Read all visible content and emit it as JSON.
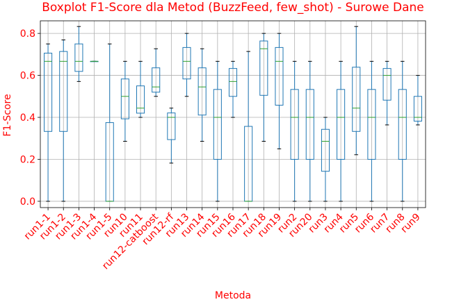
{
  "chart_data": {
    "type": "boxplot",
    "title": "Boxplot F1-Score dla Metod (BuzzFeed, few_shot) - Surowe Dane",
    "xlabel": "Metoda",
    "ylabel": "F1-Score",
    "ylim": [
      -0.03,
      0.86
    ],
    "yticks": [
      "0.0",
      "0.2",
      "0.4",
      "0.6",
      "0.8"
    ],
    "grid": true,
    "colors": {
      "text": "#ff0000",
      "box": "#1f77b4",
      "median": "#2ca02c",
      "grid": "#b0b0b0"
    },
    "categories": [
      "run1-1",
      "run1-2",
      "run1-3",
      "run1-4",
      "run1-5",
      "run10",
      "run11",
      "run12-catboost",
      "run12-rf",
      "run13",
      "run14",
      "run15",
      "run16",
      "run17",
      "run18",
      "run19",
      "run2",
      "run20",
      "run3",
      "run4",
      "run5",
      "run6",
      "run7",
      "run8",
      "run9"
    ],
    "boxes": [
      {
        "min": 0.0,
        "q1": 0.333,
        "median": 0.667,
        "q3": 0.706,
        "max": 0.75
      },
      {
        "min": 0.0,
        "q1": 0.333,
        "median": 0.667,
        "q3": 0.714,
        "max": 0.769
      },
      {
        "min": 0.571,
        "q1": 0.619,
        "median": 0.667,
        "q3": 0.75,
        "max": 0.833
      },
      {
        "min": 0.667,
        "q1": 0.667,
        "median": 0.667,
        "q3": 0.667,
        "max": 0.667
      },
      {
        "min": 0.0,
        "q1": 0.0,
        "median": 0.0,
        "q3": 0.375,
        "max": 0.75
      },
      {
        "min": 0.286,
        "q1": 0.393,
        "median": 0.5,
        "q3": 0.583,
        "max": 0.667
      },
      {
        "min": 0.4,
        "q1": 0.42,
        "median": 0.444,
        "q3": 0.55,
        "max": 0.667
      },
      {
        "min": 0.5,
        "q1": 0.52,
        "median": 0.545,
        "q3": 0.636,
        "max": 0.727
      },
      {
        "min": 0.182,
        "q1": 0.294,
        "median": 0.4,
        "q3": 0.421,
        "max": 0.444
      },
      {
        "min": 0.5,
        "q1": 0.583,
        "median": 0.667,
        "q3": 0.733,
        "max": 0.8
      },
      {
        "min": 0.286,
        "q1": 0.411,
        "median": 0.545,
        "q3": 0.636,
        "max": 0.727
      },
      {
        "min": 0.0,
        "q1": 0.2,
        "median": 0.4,
        "q3": 0.533,
        "max": 0.667
      },
      {
        "min": 0.4,
        "q1": 0.5,
        "median": 0.571,
        "q3": 0.633,
        "max": 0.667
      },
      {
        "min": 0.0,
        "q1": 0.0,
        "median": 0.0,
        "q3": 0.357,
        "max": 0.714
      },
      {
        "min": 0.286,
        "q1": 0.505,
        "median": 0.727,
        "q3": 0.764,
        "max": 0.8
      },
      {
        "min": 0.25,
        "q1": 0.458,
        "median": 0.667,
        "q3": 0.733,
        "max": 0.8
      },
      {
        "min": 0.0,
        "q1": 0.2,
        "median": 0.4,
        "q3": 0.533,
        "max": 0.667
      },
      {
        "min": 0.0,
        "q1": 0.2,
        "median": 0.4,
        "q3": 0.533,
        "max": 0.667
      },
      {
        "min": 0.0,
        "q1": 0.143,
        "median": 0.286,
        "q3": 0.343,
        "max": 0.4
      },
      {
        "min": 0.0,
        "q1": 0.2,
        "median": 0.4,
        "q3": 0.533,
        "max": 0.667
      },
      {
        "min": 0.222,
        "q1": 0.333,
        "median": 0.444,
        "q3": 0.639,
        "max": 0.833
      },
      {
        "min": 0.0,
        "q1": 0.2,
        "median": 0.4,
        "q3": 0.533,
        "max": 0.667
      },
      {
        "min": 0.364,
        "q1": 0.482,
        "median": 0.6,
        "q3": 0.633,
        "max": 0.667
      },
      {
        "min": 0.0,
        "q1": 0.2,
        "median": 0.4,
        "q3": 0.533,
        "max": 0.667
      },
      {
        "min": 0.364,
        "q1": 0.382,
        "median": 0.4,
        "q3": 0.5,
        "max": 0.6
      }
    ]
  }
}
